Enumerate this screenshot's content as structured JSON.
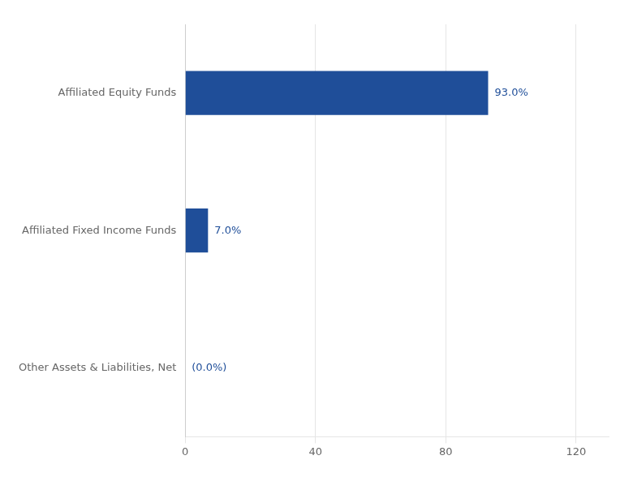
{
  "chart_data": {
    "type": "bar",
    "orientation": "horizontal",
    "categories": [
      "Other Assets & Liabilities, Net",
      "Affiliated Fixed Income Funds",
      "Affiliated Equity Funds"
    ],
    "values": [
      0.0,
      7.0,
      93.0
    ],
    "value_labels": [
      "(0.0%)",
      "7.0%",
      "93.0%"
    ],
    "data_labels": true,
    "color": "#1F4E99",
    "xlim": [
      0,
      130
    ],
    "xticks": [
      0,
      40,
      80,
      120
    ],
    "grid": true
  }
}
